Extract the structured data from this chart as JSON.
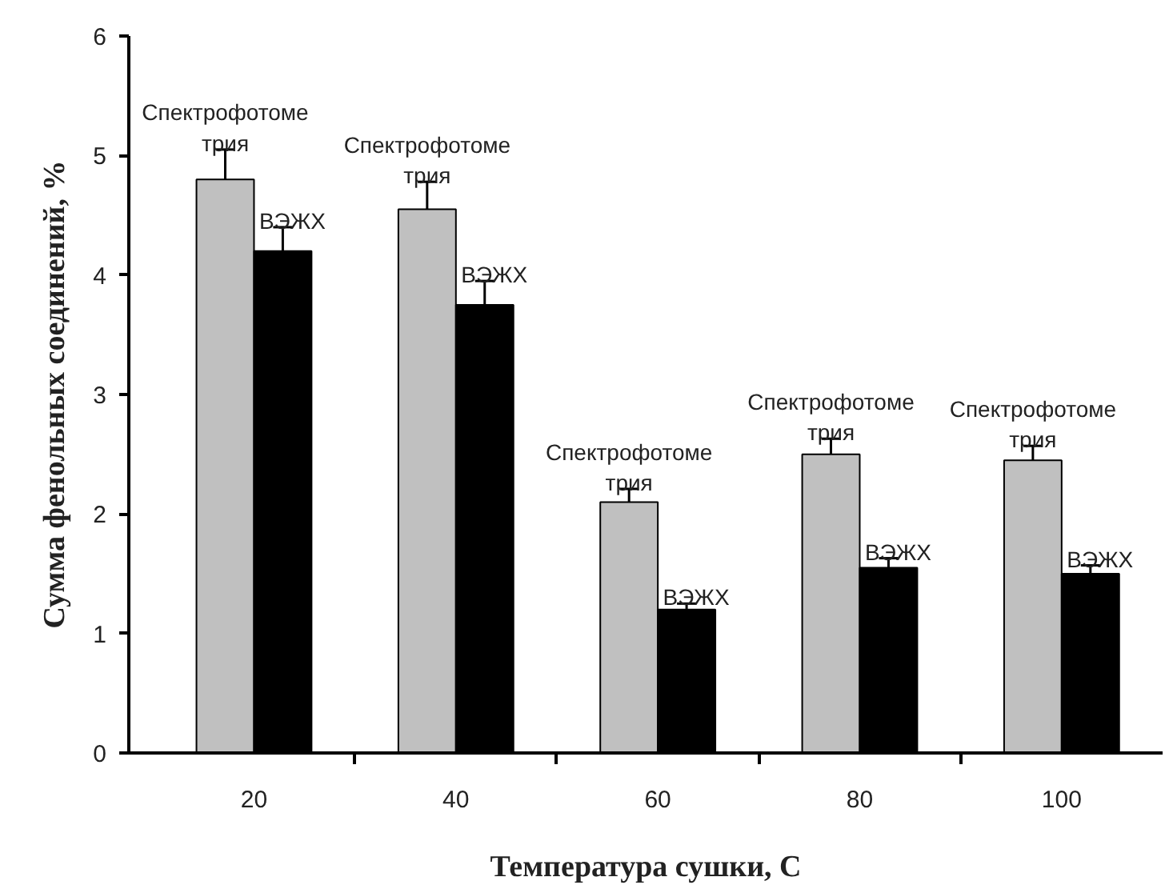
{
  "chart_data": {
    "type": "bar",
    "xlabel": "Температура сушки, С",
    "ylabel": "Сумма фенольных соединений, %",
    "categories": [
      "20",
      "40",
      "60",
      "80",
      "100"
    ],
    "series": [
      {
        "name": "Спектрофотоме\nтрия",
        "color": "#c0c0c0",
        "values": [
          4.8,
          4.55,
          2.1,
          2.5,
          2.45
        ],
        "errors": [
          0.25,
          0.23,
          0.11,
          0.13,
          0.12
        ]
      },
      {
        "name": "ВЭЖХ",
        "color": "#000000",
        "values": [
          4.2,
          3.75,
          1.2,
          1.55,
          1.5
        ],
        "errors": [
          0.2,
          0.2,
          0.05,
          0.08,
          0.07
        ]
      }
    ],
    "ylim": [
      0,
      6
    ],
    "yticks": [
      0,
      1,
      2,
      3,
      4,
      5,
      6
    ]
  }
}
